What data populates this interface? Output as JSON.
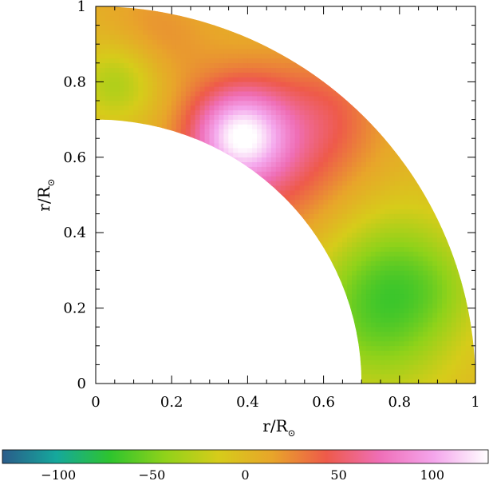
{
  "chart_data": {
    "type": "heatmap",
    "title": "",
    "xlabel": "r/R",
    "xlabel_sub": "⊙",
    "ylabel": "r/R",
    "ylabel_sub": "⊙",
    "xlim": [
      0,
      1
    ],
    "ylim": [
      0,
      1
    ],
    "x_ticks": [
      "0",
      "0.2",
      "0.4",
      "0.6",
      "0.8",
      "1"
    ],
    "y_ticks": [
      "0",
      "0.2",
      "0.4",
      "0.6",
      "0.8",
      "1"
    ],
    "domain": {
      "inner_radius": 0.7,
      "outer_radius": 1.0
    },
    "colorbar": {
      "range": [
        -130,
        130
      ],
      "ticks": [
        "−100",
        "−50",
        "0",
        "50",
        "100"
      ],
      "tick_values": [
        -100,
        -50,
        0,
        50,
        100
      ],
      "colors": [
        "#2a5c8a",
        "#15a89c",
        "#2ec42e",
        "#8fd21a",
        "#d6cc1a",
        "#e8a52a",
        "#ee5a4a",
        "#ef6fb8",
        "#f4a6ec",
        "#ffffff"
      ]
    },
    "features": [
      {
        "name": "pink maximum",
        "x": 0.38,
        "y": 0.66,
        "value": 105,
        "spread": 0.085
      },
      {
        "name": "red region",
        "x": 0.45,
        "y": 0.6,
        "value": 55,
        "spread": 0.16
      },
      {
        "name": "orange band",
        "x": 0.62,
        "y": 0.72,
        "value": 28,
        "spread": 0.1
      },
      {
        "name": "orange upper band",
        "x": 0.15,
        "y": 0.92,
        "value": 25,
        "spread": 0.1
      },
      {
        "name": "green polar tongue",
        "x": 0.06,
        "y": 0.8,
        "value": -40,
        "spread": 0.08
      },
      {
        "name": "green equatorial region",
        "x": 0.75,
        "y": 0.17,
        "value": -55,
        "spread": 0.15
      },
      {
        "name": "green mid region",
        "x": 0.8,
        "y": 0.32,
        "value": -28,
        "spread": 0.13
      },
      {
        "name": "yellow outer band",
        "x": 0.93,
        "y": 0.25,
        "value": -5,
        "spread": 0.08
      }
    ]
  }
}
